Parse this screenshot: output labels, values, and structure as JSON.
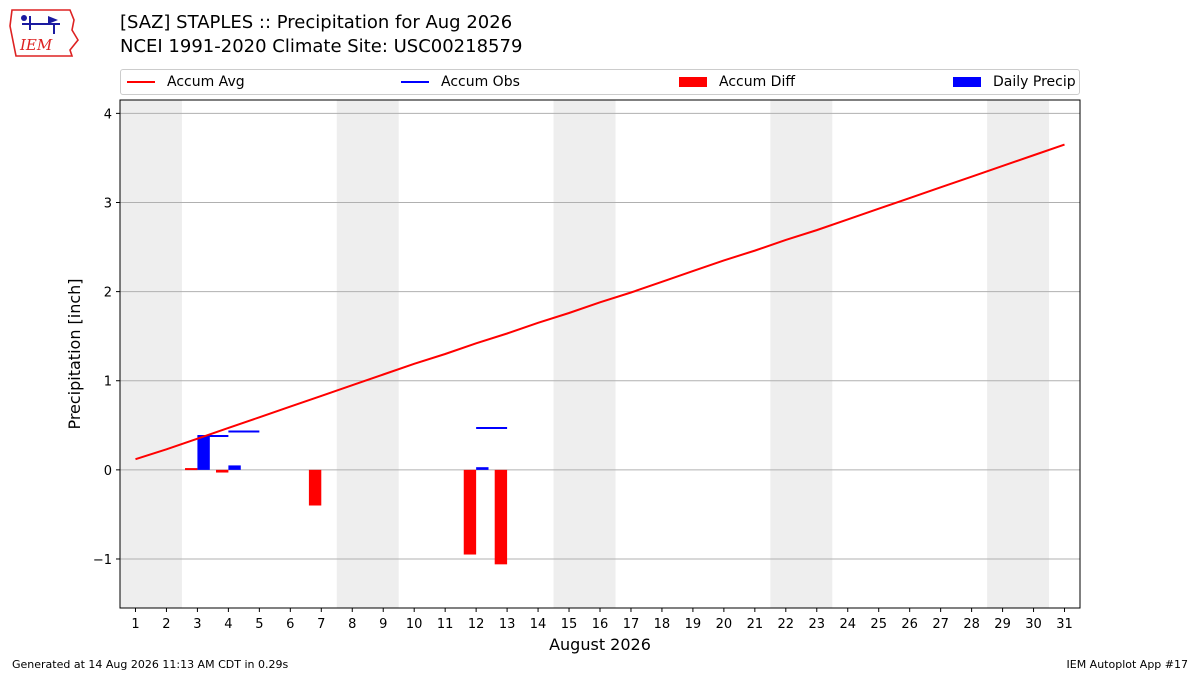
{
  "title_line1": "[SAZ] STAPLES :: Precipitation for Aug 2026",
  "title_line2": "NCEI 1991-2020 Climate Site: USC00218579",
  "logo_text": "IEM",
  "legend": {
    "accum_avg": "Accum Avg",
    "accum_obs": "Accum Obs",
    "accum_diff": "Accum Diff",
    "daily_precip": "Daily Precip"
  },
  "footer": {
    "left": "Generated at 14 Aug 2026 11:13 AM CDT in 0.29s",
    "right": "IEM Autoplot App #17"
  },
  "colors": {
    "accum_avg": "#ff0000",
    "accum_obs": "#0000ff",
    "accum_diff": "#ff0000",
    "daily_precip": "#0000ff",
    "weekend_shade": "#eeeeee",
    "grid": "#b0b0b0"
  },
  "chart_data": {
    "type": "bar",
    "xlabel": "August 2026",
    "ylabel": "Precipitation [inch]",
    "ylim": [
      -1.55,
      4.15
    ],
    "yticks": [
      -1,
      0,
      1,
      2,
      3,
      4
    ],
    "ytick_labels": [
      "−1",
      "0",
      "1",
      "2",
      "3",
      "4"
    ],
    "xlim": [
      0.5,
      31.5
    ],
    "days": [
      1,
      2,
      3,
      4,
      5,
      6,
      7,
      8,
      9,
      10,
      11,
      12,
      13,
      14,
      15,
      16,
      17,
      18,
      19,
      20,
      21,
      22,
      23,
      24,
      25,
      26,
      27,
      28,
      29,
      30,
      31
    ],
    "weekend_days": [
      1,
      2,
      8,
      9,
      15,
      16,
      22,
      23,
      29,
      30
    ],
    "grid": "y",
    "legend_position": "top",
    "series": [
      {
        "name": "Accum Avg",
        "kind": "line",
        "x": [
          1,
          2,
          3,
          4,
          5,
          6,
          7,
          8,
          9,
          10,
          11,
          12,
          13,
          14,
          15,
          16,
          17,
          18,
          19,
          20,
          21,
          22,
          23,
          24,
          25,
          26,
          27,
          28,
          29,
          30,
          31
        ],
        "values": [
          0.12,
          0.23,
          0.35,
          0.47,
          0.59,
          0.71,
          0.83,
          0.95,
          1.07,
          1.19,
          1.3,
          1.42,
          1.53,
          1.65,
          1.76,
          1.88,
          1.99,
          2.11,
          2.23,
          2.35,
          2.46,
          2.58,
          2.69,
          2.81,
          2.93,
          3.05,
          3.17,
          3.29,
          3.41,
          3.53,
          3.65
        ]
      },
      {
        "name": "Accum Obs",
        "kind": "step",
        "x": [
          1,
          2,
          3,
          4,
          5,
          6,
          7,
          8,
          9,
          10,
          11,
          12,
          13
        ],
        "values": [
          0.0,
          0.0,
          0.38,
          0.43,
          0.43,
          0.43,
          0.43,
          0.43,
          0.43,
          0.43,
          0.43,
          0.47,
          0.47
        ],
        "visible_days": [
          3,
          4,
          12
        ]
      },
      {
        "name": "Accum Diff",
        "kind": "bar",
        "x": [
          3,
          4,
          7,
          12,
          13
        ],
        "values": [
          0.02,
          -0.03,
          -0.4,
          -0.95,
          -1.06
        ]
      },
      {
        "name": "Daily Precip",
        "kind": "bar",
        "x": [
          3,
          4,
          12
        ],
        "values": [
          0.38,
          0.05,
          0.03
        ]
      }
    ]
  }
}
